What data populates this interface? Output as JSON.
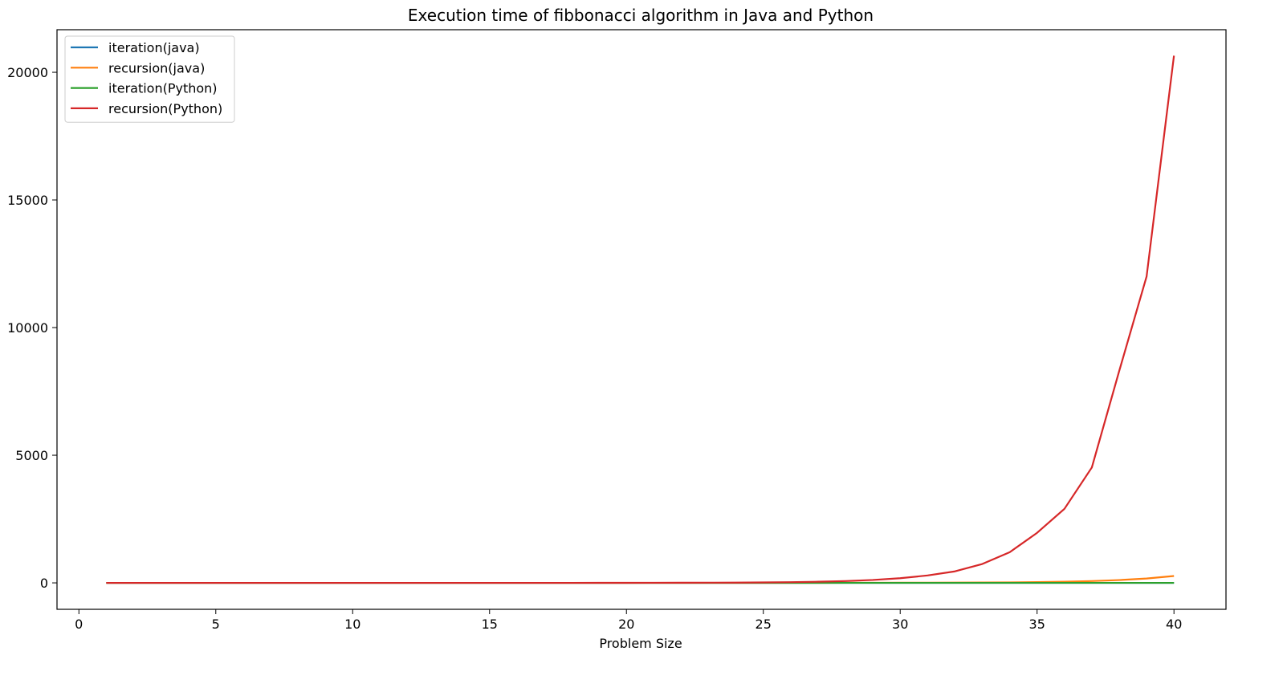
{
  "chart_data": {
    "type": "line",
    "title": "Execution time of fibbonacci algorithm in Java and Python",
    "xlabel": "Problem Size",
    "ylabel": "",
    "xlim": [
      -0.8,
      41.9
    ],
    "ylim": [
      -1036,
      21668
    ],
    "x_ticks": [
      0,
      5,
      10,
      15,
      20,
      25,
      30,
      35,
      40
    ],
    "y_ticks": [
      0,
      5000,
      10000,
      15000,
      20000
    ],
    "grid": false,
    "legend_position": "top-left",
    "x": [
      1,
      2,
      3,
      4,
      5,
      6,
      7,
      8,
      9,
      10,
      11,
      12,
      13,
      14,
      15,
      16,
      17,
      18,
      19,
      20,
      21,
      22,
      23,
      24,
      25,
      26,
      27,
      28,
      29,
      30,
      31,
      32,
      33,
      34,
      35,
      36,
      37,
      38,
      39,
      40
    ],
    "series": [
      {
        "name": "iteration(java)",
        "color": "#1f77b4",
        "values": [
          0,
          0,
          0,
          0,
          0,
          0,
          0,
          0,
          0,
          0,
          0,
          0,
          0,
          0,
          0,
          0,
          0,
          0,
          0,
          0,
          0,
          0,
          0,
          0,
          0,
          0,
          0,
          0,
          0,
          0,
          0,
          0,
          0,
          0,
          0,
          0,
          0,
          0,
          0,
          0
        ]
      },
      {
        "name": "recursion(java)",
        "color": "#ff7f0e",
        "values": [
          0,
          0,
          0,
          0,
          0,
          0,
          0,
          0,
          0,
          0,
          0,
          0,
          0,
          0,
          0,
          0,
          0,
          0,
          0,
          0,
          0,
          0,
          0,
          0,
          1,
          1,
          2,
          3,
          4,
          6,
          8,
          11,
          14,
          20,
          30,
          45,
          70,
          110,
          170,
          270
        ]
      },
      {
        "name": "iteration(Python)",
        "color": "#2ca02c",
        "values": [
          0,
          0,
          0,
          0,
          0,
          0,
          0,
          0,
          0,
          0,
          0,
          0,
          0,
          0,
          0,
          0,
          0,
          0,
          0,
          0,
          0,
          0,
          0,
          0,
          0,
          0,
          0,
          0,
          0,
          0,
          0,
          0,
          0,
          0,
          0,
          0,
          0,
          0,
          0,
          0
        ]
      },
      {
        "name": "recursion(Python)",
        "color": "#d62728",
        "values": [
          0,
          0,
          0,
          0,
          0,
          0,
          0,
          0,
          0,
          0,
          0,
          0,
          0,
          0,
          0,
          0,
          0,
          0,
          1,
          2,
          3,
          5,
          7,
          10,
          17,
          27,
          44,
          70,
          113,
          183,
          290,
          450,
          740,
          1200,
          1960,
          2900,
          4520,
          8300,
          12000,
          20650
        ]
      }
    ]
  }
}
